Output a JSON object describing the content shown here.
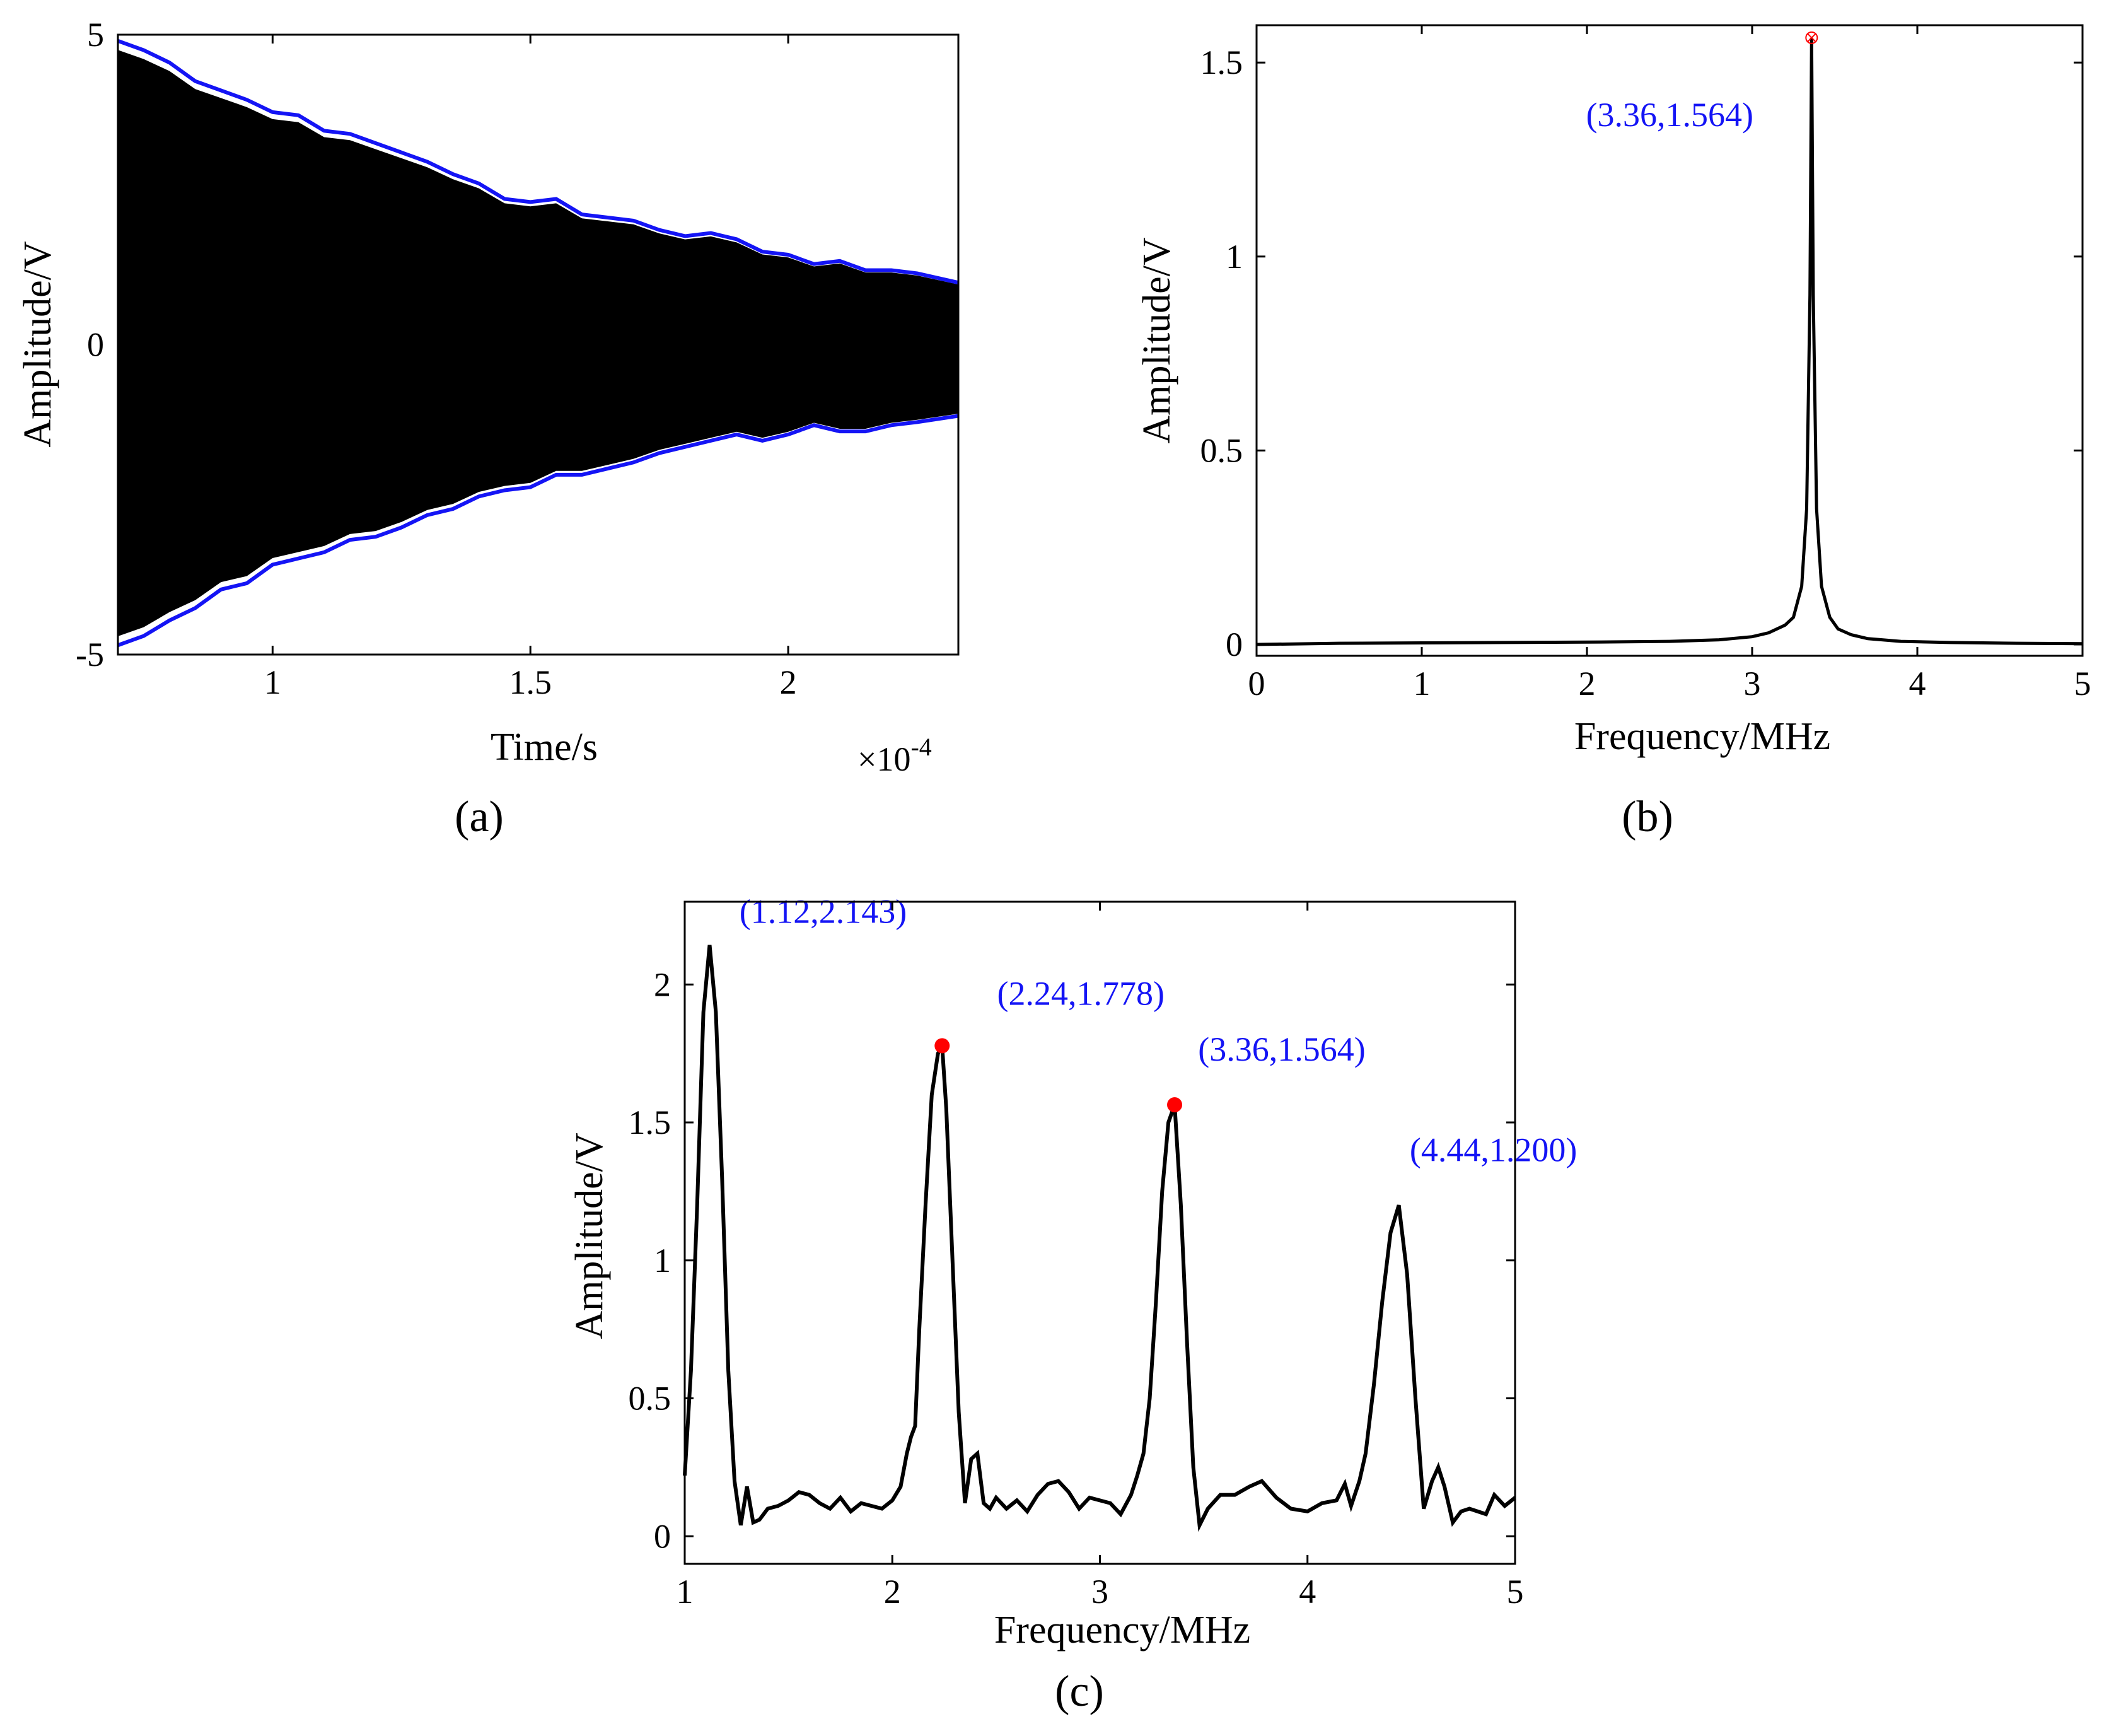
{
  "colors": {
    "signal": "#000000",
    "envelope": "#1414f5",
    "annotation": "#1414f5",
    "marker": "#ff0000"
  },
  "chart_data": [
    {
      "panel": "a",
      "type": "line",
      "panel_label": "(a)",
      "xlabel": "Time/s",
      "ylabel": "Amplitude/V",
      "x_exponent": "×10",
      "x_exponent_power": "-4",
      "xlim": [
        0.7,
        2.33
      ],
      "ylim": [
        -5,
        5
      ],
      "x_ticks": [
        {
          "value": 1,
          "label": "1"
        },
        {
          "value": 1.5,
          "label": "1.5"
        },
        {
          "value": 2,
          "label": "2"
        }
      ],
      "y_ticks": [
        {
          "value": 5,
          "label": "5"
        },
        {
          "value": 0,
          "label": "0"
        },
        {
          "value": -5,
          "label": "-5"
        }
      ],
      "envelope_upper": {
        "x": [
          0.7,
          0.75,
          0.8,
          0.85,
          0.9,
          0.95,
          1.0,
          1.05,
          1.1,
          1.15,
          1.2,
          1.25,
          1.3,
          1.35,
          1.4,
          1.45,
          1.5,
          1.55,
          1.6,
          1.65,
          1.7,
          1.75,
          1.8,
          1.85,
          1.9,
          1.95,
          2.0,
          2.05,
          2.1,
          2.15,
          2.2,
          2.25,
          2.33
        ],
        "y": [
          4.9,
          4.75,
          4.55,
          4.25,
          4.1,
          3.95,
          3.75,
          3.7,
          3.45,
          3.4,
          3.25,
          3.1,
          2.95,
          2.75,
          2.6,
          2.35,
          2.3,
          2.35,
          2.1,
          2.05,
          2.0,
          1.85,
          1.75,
          1.8,
          1.7,
          1.5,
          1.45,
          1.3,
          1.35,
          1.2,
          1.2,
          1.15,
          1.0
        ]
      },
      "envelope_lower": {
        "x": [
          0.7,
          0.75,
          0.8,
          0.85,
          0.9,
          0.95,
          1.0,
          1.05,
          1.1,
          1.15,
          1.2,
          1.25,
          1.3,
          1.35,
          1.4,
          1.45,
          1.5,
          1.55,
          1.6,
          1.65,
          1.7,
          1.75,
          1.8,
          1.85,
          1.9,
          1.95,
          2.0,
          2.05,
          2.1,
          2.15,
          2.2,
          2.25,
          2.33
        ],
        "y": [
          -4.85,
          -4.7,
          -4.45,
          -4.25,
          -3.95,
          -3.85,
          -3.55,
          -3.45,
          -3.35,
          -3.15,
          -3.1,
          -2.95,
          -2.75,
          -2.65,
          -2.45,
          -2.35,
          -2.3,
          -2.1,
          -2.1,
          -2.0,
          -1.9,
          -1.75,
          -1.65,
          -1.55,
          -1.45,
          -1.55,
          -1.45,
          -1.3,
          -1.4,
          -1.4,
          -1.3,
          -1.25,
          -1.15
        ]
      }
    },
    {
      "panel": "b",
      "type": "line",
      "panel_label": "(b)",
      "xlabel": "Frequency/MHz",
      "ylabel": "Amplitude/V",
      "xlim": [
        0,
        5
      ],
      "ylim": [
        0,
        1.58
      ],
      "x_ticks": [
        {
          "value": 0,
          "label": "0"
        },
        {
          "value": 1,
          "label": "1"
        },
        {
          "value": 2,
          "label": "2"
        },
        {
          "value": 3,
          "label": "3"
        },
        {
          "value": 4,
          "label": "4"
        },
        {
          "value": 5,
          "label": "5"
        }
      ],
      "y_ticks": [
        {
          "value": 0,
          "label": "0"
        },
        {
          "value": 0.5,
          "label": "0.5"
        },
        {
          "value": 1,
          "label": "1"
        },
        {
          "value": 1.5,
          "label": "1.5"
        }
      ],
      "x": [
        0,
        0.5,
        1.0,
        1.5,
        2.0,
        2.5,
        2.8,
        3.0,
        3.1,
        3.2,
        3.25,
        3.3,
        3.33,
        3.35,
        3.36,
        3.37,
        3.39,
        3.42,
        3.47,
        3.52,
        3.6,
        3.7,
        3.9,
        4.2,
        4.6,
        5.0
      ],
      "y": [
        0.0,
        0.003,
        0.004,
        0.005,
        0.006,
        0.008,
        0.012,
        0.02,
        0.03,
        0.05,
        0.07,
        0.15,
        0.35,
        0.9,
        1.564,
        0.9,
        0.35,
        0.15,
        0.07,
        0.04,
        0.025,
        0.015,
        0.008,
        0.005,
        0.003,
        0.002
      ],
      "peak": {
        "x": 3.36,
        "y": 1.564,
        "label": "(3.36,1.564)"
      }
    },
    {
      "panel": "c",
      "type": "line",
      "panel_label": "(c)",
      "xlabel": "Frequency/MHz",
      "ylabel": "Amplitude/V",
      "xlim": [
        1,
        5
      ],
      "ylim": [
        -0.1,
        2.3
      ],
      "x_ticks": [
        {
          "value": 1,
          "label": "1"
        },
        {
          "value": 2,
          "label": "2"
        },
        {
          "value": 3,
          "label": "3"
        },
        {
          "value": 4,
          "label": "4"
        },
        {
          "value": 5,
          "label": "5"
        }
      ],
      "y_ticks": [
        {
          "value": 0,
          "label": "0"
        },
        {
          "value": 0.5,
          "label": "0.5"
        },
        {
          "value": 1,
          "label": "1"
        },
        {
          "value": 1.5,
          "label": "1.5"
        },
        {
          "value": 2,
          "label": "2"
        }
      ],
      "x": [
        1.0,
        1.03,
        1.06,
        1.09,
        1.12,
        1.15,
        1.18,
        1.21,
        1.24,
        1.27,
        1.3,
        1.33,
        1.36,
        1.4,
        1.45,
        1.5,
        1.55,
        1.6,
        1.65,
        1.7,
        1.75,
        1.8,
        1.85,
        1.9,
        1.95,
        2.0,
        2.04,
        2.07,
        2.09,
        2.11,
        2.13,
        2.16,
        2.19,
        2.22,
        2.24,
        2.26,
        2.29,
        2.32,
        2.35,
        2.38,
        2.41,
        2.44,
        2.47,
        2.5,
        2.55,
        2.6,
        2.65,
        2.7,
        2.75,
        2.8,
        2.85,
        2.9,
        2.95,
        3.0,
        3.05,
        3.1,
        3.15,
        3.18,
        3.21,
        3.24,
        3.27,
        3.3,
        3.33,
        3.36,
        3.39,
        3.42,
        3.45,
        3.48,
        3.52,
        3.58,
        3.65,
        3.72,
        3.78,
        3.85,
        3.92,
        4.0,
        4.07,
        4.14,
        4.18,
        4.21,
        4.25,
        4.28,
        4.32,
        4.36,
        4.4,
        4.44,
        4.48,
        4.52,
        4.56,
        4.6,
        4.63,
        4.66,
        4.7,
        4.74,
        4.78,
        4.82,
        4.86,
        4.9,
        4.95,
        5.0
      ],
      "y": [
        0.22,
        0.6,
        1.2,
        1.9,
        2.143,
        1.9,
        1.3,
        0.6,
        0.2,
        0.04,
        0.18,
        0.05,
        0.06,
        0.1,
        0.11,
        0.13,
        0.16,
        0.15,
        0.12,
        0.1,
        0.14,
        0.09,
        0.12,
        0.11,
        0.1,
        0.13,
        0.18,
        0.3,
        0.36,
        0.4,
        0.75,
        1.2,
        1.6,
        1.75,
        1.778,
        1.55,
        1.0,
        0.45,
        0.12,
        0.28,
        0.3,
        0.12,
        0.1,
        0.14,
        0.1,
        0.13,
        0.09,
        0.15,
        0.19,
        0.2,
        0.16,
        0.1,
        0.14,
        0.13,
        0.12,
        0.08,
        0.15,
        0.22,
        0.3,
        0.5,
        0.85,
        1.25,
        1.5,
        1.564,
        1.2,
        0.7,
        0.25,
        0.04,
        0.1,
        0.15,
        0.15,
        0.18,
        0.2,
        0.14,
        0.1,
        0.09,
        0.12,
        0.13,
        0.19,
        0.11,
        0.2,
        0.3,
        0.55,
        0.85,
        1.1,
        1.2,
        0.95,
        0.5,
        0.1,
        0.2,
        0.25,
        0.18,
        0.05,
        0.09,
        0.1,
        0.09,
        0.08,
        0.15,
        0.11,
        0.14
      ],
      "annotations": [
        {
          "x": 1.12,
          "y": 2.143,
          "label": "(1.12,2.143)",
          "marker": false
        },
        {
          "x": 2.24,
          "y": 1.778,
          "label": "(2.24,1.778)",
          "marker": true
        },
        {
          "x": 3.36,
          "y": 1.564,
          "label": "(3.36,1.564)",
          "marker": true
        },
        {
          "x": 4.44,
          "y": 1.2,
          "label": "(4.44,1.200)",
          "marker": false
        }
      ]
    }
  ]
}
